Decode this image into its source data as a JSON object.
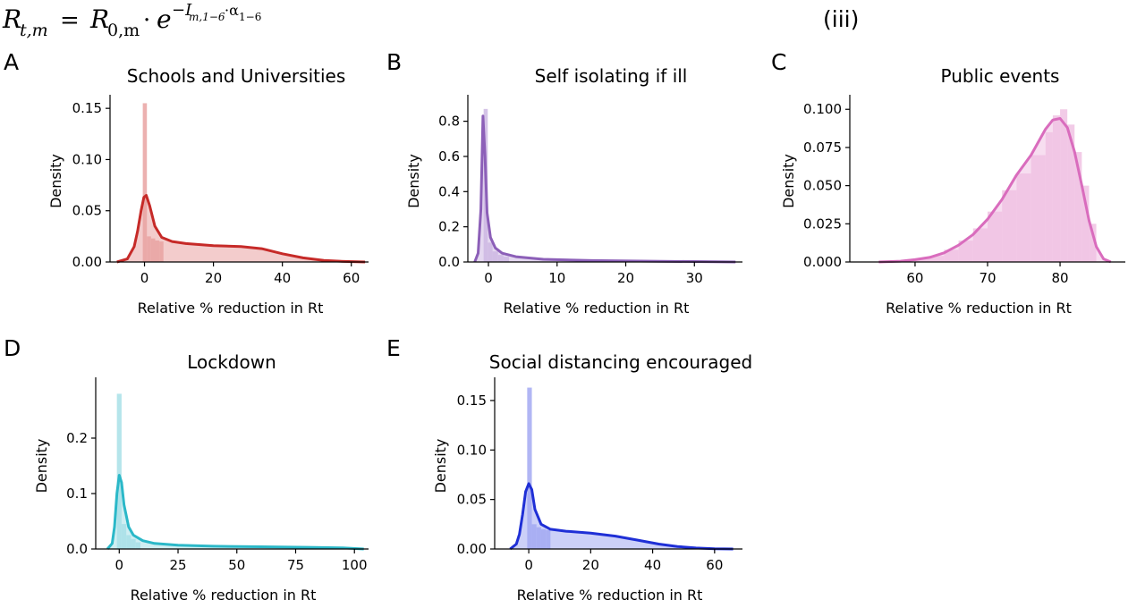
{
  "header": {
    "formula": {
      "R": "R",
      "lhs_sub": "t,m",
      "equals": "=",
      "R0_sub": "0,m",
      "dot": "·",
      "e": "e",
      "exp_I": "−I",
      "exp_I_sub": "m,1−6",
      "exp_dot": "·α",
      "exp_alpha_sub": "1−6"
    },
    "panel_tag": "(iii)"
  },
  "chart_data": [
    {
      "letter": "A",
      "title": "Schools and Universities",
      "type": "area",
      "xlabel": "Relative % reduction in Rt",
      "ylabel": "Density",
      "xlim": [
        -10,
        65
      ],
      "ylim": [
        0,
        0.158
      ],
      "xticks": [
        0,
        20,
        40,
        60
      ],
      "yticks": [
        0.0,
        0.05,
        0.1,
        0.15
      ],
      "ytick_labels": [
        "0.00",
        "0.05",
        "0.10",
        "0.15"
      ],
      "line_color": "#c62a28",
      "fill_color": "#e9a3a2",
      "hist": {
        "edges": [
          -0.5,
          0.7,
          1.9,
          3.1,
          4.3,
          5.5
        ],
        "heights": [
          0.155,
          0.025,
          0.023,
          0.021,
          0.02
        ]
      },
      "kde": {
        "x": [
          -8,
          -5,
          -3,
          -2,
          -1,
          -0.2,
          0.5,
          1.5,
          3,
          5,
          8,
          12,
          20,
          28,
          34,
          40,
          46,
          52,
          58,
          64
        ],
        "y": [
          0,
          0.003,
          0.015,
          0.03,
          0.05,
          0.063,
          0.065,
          0.055,
          0.035,
          0.024,
          0.02,
          0.018,
          0.016,
          0.015,
          0.013,
          0.008,
          0.004,
          0.0015,
          0.0005,
          0
        ]
      }
    },
    {
      "letter": "B",
      "title": "Self isolating if ill",
      "type": "area",
      "xlabel": "Relative % reduction in Rt",
      "ylabel": "Density",
      "xlim": [
        -3,
        37
      ],
      "ylim": [
        0,
        0.92
      ],
      "xticks": [
        0,
        10,
        20,
        30
      ],
      "yticks": [
        0.0,
        0.2,
        0.4,
        0.6,
        0.8
      ],
      "ytick_labels": [
        "0.0",
        "0.2",
        "0.4",
        "0.6",
        "0.8"
      ],
      "line_color": "#8c5fb8",
      "fill_color": "#cdb8e3",
      "hist": {
        "edges": [
          -0.7,
          -0.1,
          0.6,
          1.4,
          2.2,
          3.0
        ],
        "heights": [
          0.87,
          0.11,
          0.06,
          0.04,
          0.03
        ]
      },
      "kde": {
        "x": [
          -2,
          -1.5,
          -1.1,
          -0.8,
          -0.5,
          -0.2,
          0.3,
          1,
          2,
          4,
          8,
          15,
          25,
          36
        ],
        "y": [
          0,
          0.05,
          0.3,
          0.83,
          0.6,
          0.28,
          0.14,
          0.08,
          0.05,
          0.03,
          0.015,
          0.008,
          0.004,
          0
        ]
      }
    },
    {
      "letter": "C",
      "title": "Public events",
      "type": "area",
      "xlabel": "Relative % reduction in Rt",
      "ylabel": "Density",
      "xlim": [
        51,
        89
      ],
      "ylim": [
        0,
        0.106
      ],
      "xticks": [
        60,
        70,
        80
      ],
      "yticks": [
        0.0,
        0.025,
        0.05,
        0.075,
        0.1
      ],
      "ytick_labels": [
        "0.000",
        "0.025",
        "0.050",
        "0.075",
        "0.100"
      ],
      "line_color": "#d96cbd",
      "fill_color": "#f0c2e3",
      "hist": {
        "edges": [
          60,
          62,
          64,
          66,
          68,
          70,
          72,
          74,
          76,
          78,
          79,
          80,
          81,
          82,
          83,
          84,
          85
        ],
        "heights": [
          0.002,
          0.004,
          0.008,
          0.014,
          0.022,
          0.033,
          0.047,
          0.058,
          0.07,
          0.085,
          0.096,
          0.1,
          0.09,
          0.072,
          0.05,
          0.025
        ]
      },
      "kde": {
        "x": [
          55,
          58,
          60,
          62,
          64,
          66,
          68,
          70,
          72,
          74,
          76,
          78,
          79,
          80,
          81,
          82,
          83,
          84,
          85,
          86,
          87
        ],
        "y": [
          0,
          0.0005,
          0.0015,
          0.003,
          0.006,
          0.011,
          0.018,
          0.028,
          0.041,
          0.057,
          0.07,
          0.087,
          0.093,
          0.094,
          0.088,
          0.072,
          0.05,
          0.027,
          0.01,
          0.002,
          0
        ]
      }
    },
    {
      "letter": "D",
      "title": "Lockdown",
      "type": "area",
      "xlabel": "Relative % reduction in Rt",
      "ylabel": "Density",
      "xlim": [
        -10,
        106
      ],
      "ylim": [
        0,
        0.3
      ],
      "xticks": [
        0,
        25,
        50,
        75,
        100
      ],
      "yticks": [
        0.0,
        0.1,
        0.2
      ],
      "ytick_labels": [
        "0.0",
        "0.1",
        "0.2"
      ],
      "line_color": "#2bb8c8",
      "fill_color": "#a8e0e7",
      "hist": {
        "edges": [
          -1,
          1,
          3,
          5,
          7,
          9
        ],
        "heights": [
          0.28,
          0.045,
          0.025,
          0.018,
          0.012
        ]
      },
      "kde": {
        "x": [
          -5,
          -3,
          -2,
          -1,
          0,
          1,
          2,
          4,
          6,
          10,
          15,
          25,
          40,
          60,
          80,
          95,
          104
        ],
        "y": [
          0,
          0.01,
          0.04,
          0.1,
          0.133,
          0.12,
          0.08,
          0.04,
          0.025,
          0.015,
          0.01,
          0.007,
          0.005,
          0.004,
          0.003,
          0.002,
          0
        ]
      }
    },
    {
      "letter": "E",
      "title": "Social distancing encouraged",
      "type": "area",
      "xlabel": "Relative % reduction in Rt",
      "ylabel": "Density",
      "xlim": [
        -11,
        69
      ],
      "ylim": [
        0,
        0.168
      ],
      "xticks": [
        0,
        20,
        40,
        60
      ],
      "yticks": [
        0.0,
        0.05,
        0.1,
        0.15
      ],
      "ytick_labels": [
        "0.00",
        "0.05",
        "0.10",
        "0.15"
      ],
      "line_color": "#1f2fd6",
      "fill_color": "#a3a9f2",
      "hist": {
        "edges": [
          -0.5,
          1,
          2.5,
          4,
          5.5,
          7
        ],
        "heights": [
          0.163,
          0.025,
          0.022,
          0.02,
          0.019
        ]
      },
      "kde": {
        "x": [
          -6,
          -4,
          -3,
          -2,
          -1,
          0,
          1,
          2,
          4,
          7,
          12,
          20,
          28,
          35,
          42,
          48,
          54,
          60,
          66
        ],
        "y": [
          0,
          0.005,
          0.015,
          0.035,
          0.058,
          0.066,
          0.06,
          0.04,
          0.025,
          0.02,
          0.018,
          0.016,
          0.013,
          0.009,
          0.005,
          0.0025,
          0.001,
          0.0003,
          0
        ]
      }
    }
  ]
}
